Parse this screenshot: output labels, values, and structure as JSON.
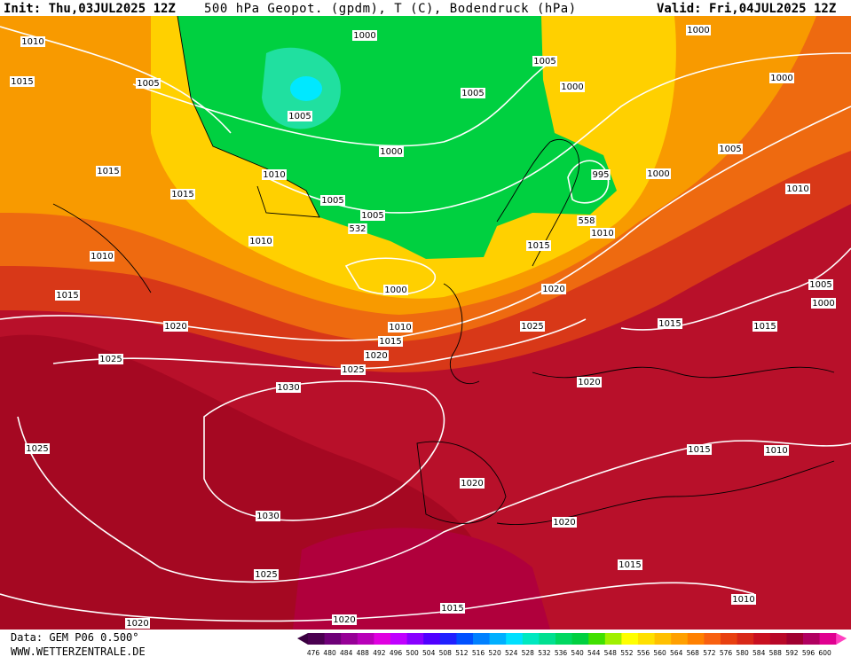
{
  "header": {
    "init": "Init: Thu,03JUL2025 12Z",
    "title": "500 hPa Geopot. (gpdm), T (C), Bodendruck (hPa)",
    "valid": "Valid: Fri,04JUL2025 12Z"
  },
  "isobar_labels": [
    "1010",
    "1015",
    "1005",
    "1000",
    "1005",
    "1005",
    "1005",
    "1000",
    "1000",
    "1000",
    "1005",
    "1000",
    "995",
    "1000",
    "1010",
    "1015",
    "1015",
    "1010",
    "1005",
    "1005",
    "532",
    "558",
    "1010",
    "1010",
    "1015",
    "1010",
    "1000",
    "1020",
    "1005",
    "1000",
    "1015",
    "1020",
    "1010",
    "1015",
    "1015",
    "1025",
    "1015",
    "1020",
    "1025",
    "1025",
    "1030",
    "1020",
    "1025",
    "1015",
    "1010",
    "1020",
    "1030",
    "1020",
    "1015",
    "1025",
    "1010",
    "1020",
    "1020",
    "1015"
  ],
  "legend": {
    "values": [
      476,
      480,
      484,
      488,
      492,
      496,
      500,
      504,
      508,
      512,
      516,
      520,
      524,
      528,
      532,
      536,
      540,
      544,
      548,
      552,
      556,
      560,
      564,
      568,
      572,
      576,
      580,
      584,
      588,
      592,
      596,
      600
    ]
  },
  "footer": {
    "data": "Data: GEM P06 0.500°",
    "site": "WWW.WETTERZENTRALE.DE"
  }
}
